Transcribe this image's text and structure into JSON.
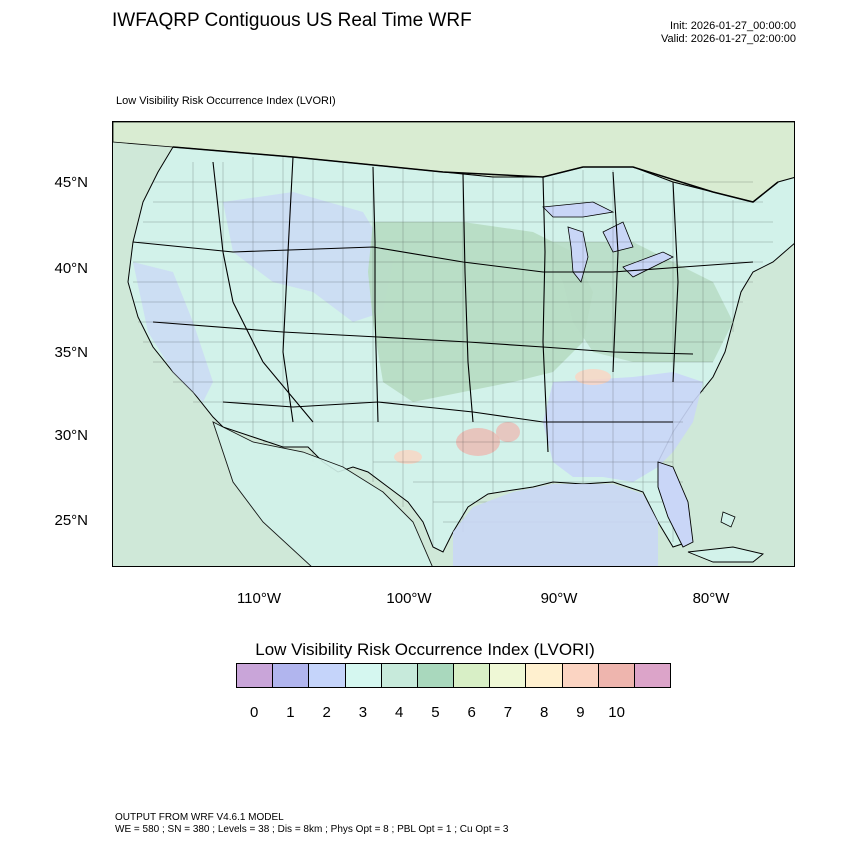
{
  "header": {
    "title": "IWFAQRP Contiguous US Real Time WRF",
    "init": "Init: 2026-01-27_00:00:00",
    "valid": "Valid: 2026-01-27_02:00:00"
  },
  "map": {
    "subtitle": "Low Visibility Risk Occurrence Index   (LVORI)",
    "lat_labels": [
      "45°N",
      "40°N",
      "35°N",
      "30°N",
      "25°N"
    ],
    "lon_labels": [
      "110°W",
      "100°W",
      "90°W",
      "80°W"
    ],
    "colors": {
      "ocean": "#cfe8d8",
      "land_low": "#c9d6f7",
      "land_mid": "#d2f2ea",
      "land_high": "#b7dcc4",
      "hot": "#eeb5ae",
      "border": "#000000"
    }
  },
  "legend": {
    "title": "Low Visibility Risk Occurrence Index  (LVORI)",
    "ticks": [
      "0",
      "1",
      "2",
      "3",
      "4",
      "5",
      "6",
      "7",
      "8",
      "9",
      "10"
    ],
    "colors": [
      "#c9a5d9",
      "#b1b5ee",
      "#c5d4fa",
      "#d5f7f0",
      "#c7eadb",
      "#a9d8bd",
      "#d8efc6",
      "#eff8d6",
      "#fff0cf",
      "#fbd4c2",
      "#eeb5ae",
      "#dca4c9"
    ]
  },
  "footer": {
    "line1": "OUTPUT FROM WRF V4.6.1 MODEL",
    "line2": "WE = 580 ; SN = 380 ; Levels = 38 ; Dis = 8km ; Phys Opt = 8 ; PBL Opt = 1 ; Cu Opt = 3"
  }
}
